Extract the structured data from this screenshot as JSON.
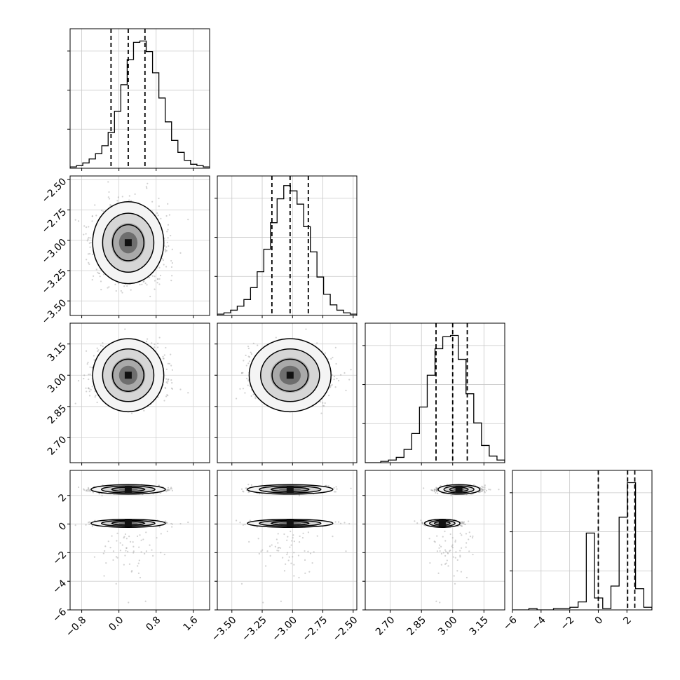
{
  "chart_data": {
    "type": "corner",
    "parameters": [
      {
        "name": "",
        "range": [
          -1.05,
          1.95
        ],
        "ticks": [
          -0.8,
          0.0,
          0.8,
          1.6
        ],
        "tick_labels": [
          "−0.8",
          "0.0",
          "0.8",
          "1.6"
        ],
        "quantiles": [
          -0.17,
          0.2,
          0.56
        ]
      },
      {
        "name": "",
        "range": [
          -3.62,
          -2.47
        ],
        "ticks": [
          -3.5,
          -3.25,
          -3.0,
          -2.75,
          -2.5
        ],
        "tick_labels": [
          "−3.50",
          "−3.25",
          "−3.00",
          "−2.75",
          "−2.50"
        ],
        "quantiles": [
          -3.17,
          -3.02,
          -2.87
        ]
      },
      {
        "name": "",
        "range": [
          2.58,
          3.25
        ],
        "ticks": [
          2.7,
          2.85,
          3.0,
          3.15
        ],
        "tick_labels": [
          "2.70",
          "2.85",
          "3.00",
          "3.15"
        ],
        "quantiles": [
          2.92,
          3.0,
          3.07
        ]
      },
      {
        "name": "",
        "range": [
          -6.0,
          3.75
        ],
        "ticks": [
          -6,
          -4,
          -2,
          0,
          2
        ],
        "tick_labels": [
          "−6",
          "−4",
          "−2",
          "0",
          "2"
        ],
        "quantiles": [
          0.0,
          2.05,
          2.55
        ]
      }
    ],
    "histograms": [
      {
        "counts": [
          1,
          2,
          4,
          7,
          11,
          17,
          27,
          43,
          63,
          82,
          95,
          96,
          88,
          72,
          53,
          35,
          21,
          12,
          6,
          3,
          2,
          1
        ],
        "ymax": 100
      },
      {
        "counts": [
          1,
          2,
          4,
          7,
          12,
          21,
          33,
          50,
          70,
          88,
          98,
          94,
          84,
          67,
          48,
          29,
          16,
          8,
          4,
          2,
          1
        ],
        "ymax": 100
      },
      {
        "counts": [
          0,
          0,
          1,
          2,
          4,
          10,
          22,
          42,
          66,
          86,
          95,
          96,
          78,
          52,
          30,
          13,
          5,
          2
        ],
        "ymax": 100
      },
      {
        "counts": [
          0,
          0,
          1,
          0,
          0,
          1,
          1,
          2,
          6,
          58,
          9,
          1,
          18,
          70,
          96,
          16,
          2
        ],
        "ymax": 100
      }
    ],
    "grid": true,
    "contour_levels": 3,
    "scatter_color": "#999999",
    "line_color": "#000000"
  }
}
